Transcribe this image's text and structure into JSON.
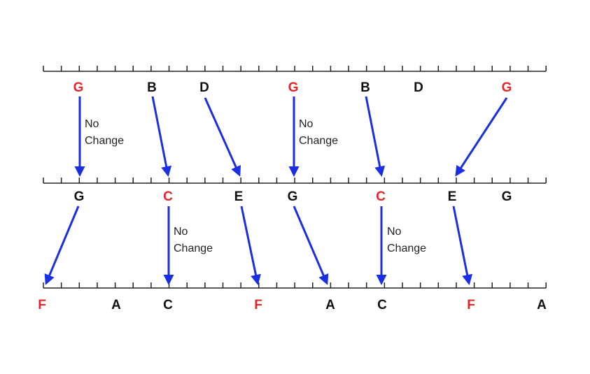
{
  "rows": [
    {
      "notes": [
        "G",
        "B",
        "D",
        "G",
        "B",
        "D",
        "G"
      ]
    },
    {
      "notes": [
        "G",
        "C",
        "E",
        "G",
        "C",
        "E",
        "G"
      ]
    },
    {
      "notes": [
        "F",
        "A",
        "C",
        "F",
        "A",
        "C",
        "F",
        "A"
      ]
    }
  ],
  "annotations": [
    {
      "lines": [
        "No",
        "Change"
      ]
    },
    {
      "lines": [
        "No",
        "Change"
      ]
    },
    {
      "lines": [
        "No",
        "Change"
      ]
    },
    {
      "lines": [
        "No",
        "Change"
      ]
    }
  ]
}
